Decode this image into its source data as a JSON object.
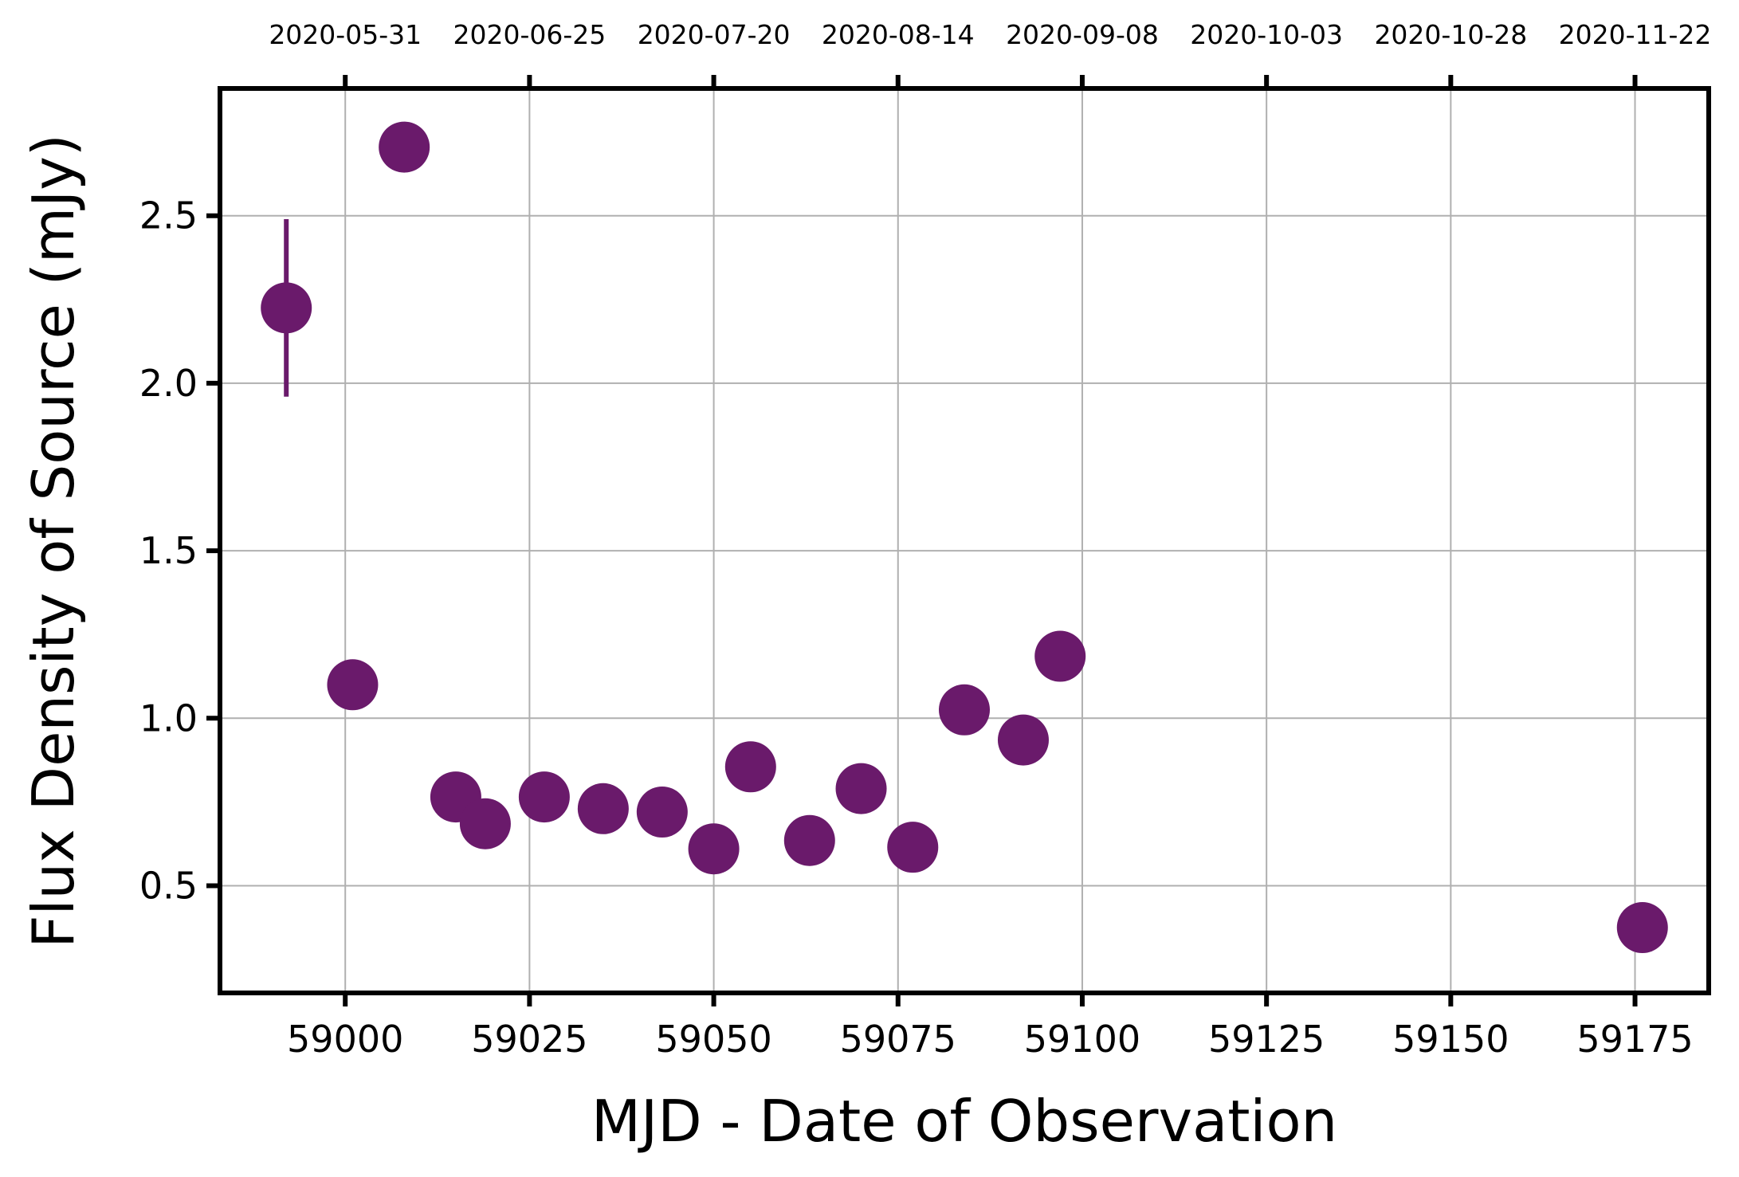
{
  "chart_data": {
    "type": "scatter",
    "title": "",
    "xlabel": "MJD - Date of Observation",
    "ylabel": "Flux Density of Source (mJy)",
    "xlim": [
      58983,
      59185
    ],
    "ylim": [
      0.18,
      2.88
    ],
    "x_ticks": [
      59000,
      59025,
      59050,
      59075,
      59100,
      59125,
      59150,
      59175
    ],
    "y_ticks": [
      0.5,
      1.0,
      1.5,
      2.0,
      2.5
    ],
    "x_tick_labels": [
      "59000",
      "59025",
      "59050",
      "59075",
      "59100",
      "59125",
      "59150",
      "59175"
    ],
    "y_tick_labels": [
      "0.5",
      "1.0",
      "1.5",
      "2.0",
      "2.5"
    ],
    "top_axis_ticks": [
      59000,
      59025,
      59050,
      59075,
      59100,
      59125,
      59150,
      59175
    ],
    "top_axis_labels": [
      "2020-05-31",
      "2020-06-25",
      "2020-07-20",
      "2020-08-14",
      "2020-09-08",
      "2020-10-03",
      "2020-10-28",
      "2020-11-22"
    ],
    "grid": true,
    "marker_color": "#6a1a6b",
    "points": [
      {
        "x": 58992,
        "y": 2.225,
        "yerr": 0.265
      },
      {
        "x": 59001,
        "y": 1.1
      },
      {
        "x": 59008,
        "y": 2.705
      },
      {
        "x": 59015,
        "y": 0.765
      },
      {
        "x": 59019,
        "y": 0.685
      },
      {
        "x": 59027,
        "y": 0.765
      },
      {
        "x": 59035,
        "y": 0.73
      },
      {
        "x": 59043,
        "y": 0.72
      },
      {
        "x": 59050,
        "y": 0.61
      },
      {
        "x": 59055,
        "y": 0.855
      },
      {
        "x": 59063,
        "y": 0.635
      },
      {
        "x": 59070,
        "y": 0.79
      },
      {
        "x": 59077,
        "y": 0.615
      },
      {
        "x": 59084,
        "y": 1.025
      },
      {
        "x": 59092,
        "y": 0.935
      },
      {
        "x": 59097,
        "y": 1.185
      },
      {
        "x": 59176,
        "y": 0.375
      }
    ]
  }
}
